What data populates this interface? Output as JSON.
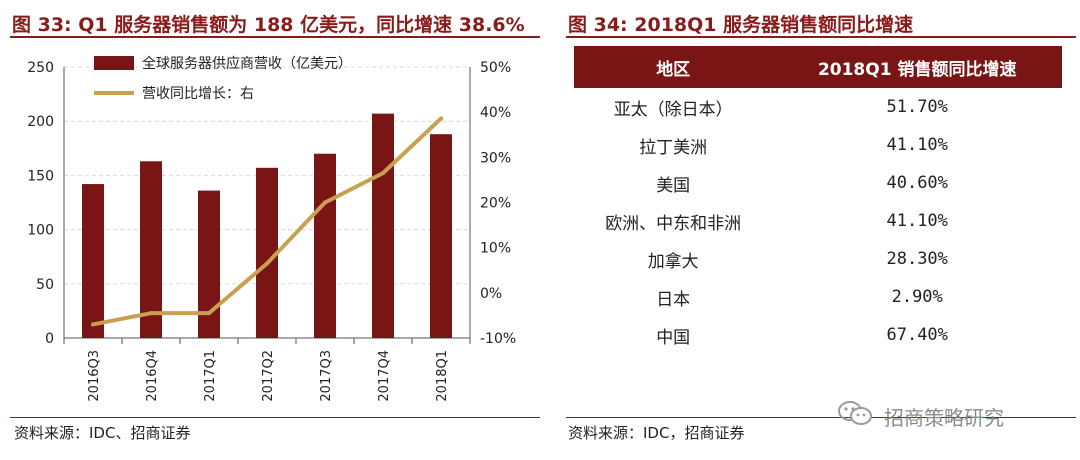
{
  "left": {
    "title": "图 33: Q1 服务器销售额为 188 亿美元，同比增速 38.6%",
    "source": "资料来源：IDC、招商证券",
    "colors": {
      "bar": "#7a1515",
      "line": "#c8a050",
      "accent": "#8b1a1a"
    }
  },
  "right": {
    "title": "图 34:  2018Q1 服务器销售额同比增速",
    "source": "资料来源：IDC，招商证券",
    "table": {
      "headers": [
        "地区",
        "2018Q1 销售额同比增速"
      ],
      "rows": [
        [
          "亚太（除日本）",
          "51.70%"
        ],
        [
          "拉丁美洲",
          "41.10%"
        ],
        [
          "美国",
          "40.60%"
        ],
        [
          "欧洲、中东和非洲",
          "41.10%"
        ],
        [
          "加拿大",
          "28.30%"
        ],
        [
          "日本",
          "2.90%"
        ],
        [
          "中国",
          "67.40%"
        ]
      ]
    }
  },
  "watermark": {
    "text": "招商策略研究",
    "icon": "wechat-icon"
  },
  "chart_data": {
    "type": "bar",
    "title": "Q1 服务器销售额为 188 亿美元，同比增速 38.6%",
    "categories": [
      "2016Q3",
      "2016Q4",
      "2017Q1",
      "2017Q2",
      "2017Q3",
      "2017Q4",
      "2018Q1"
    ],
    "series": [
      {
        "name": "全球服务器供应商营收（亿美元）",
        "type": "bar",
        "axis": "left",
        "values": [
          142,
          163,
          136,
          157,
          170,
          207,
          188
        ]
      },
      {
        "name": "营收同比增长：右",
        "type": "line",
        "axis": "right",
        "values": [
          -7,
          -4.5,
          -4.5,
          6.5,
          20,
          26.5,
          38.6
        ]
      }
    ],
    "ylim": [
      0,
      250
    ],
    "yticks": [
      "0",
      "50",
      "100",
      "150",
      "200",
      "250"
    ],
    "y2lim": [
      -10,
      50
    ],
    "y2ticks": [
      "-10%",
      "0%",
      "10%",
      "20%",
      "30%",
      "40%",
      "50%"
    ],
    "grid": true,
    "legend": "top-left"
  }
}
